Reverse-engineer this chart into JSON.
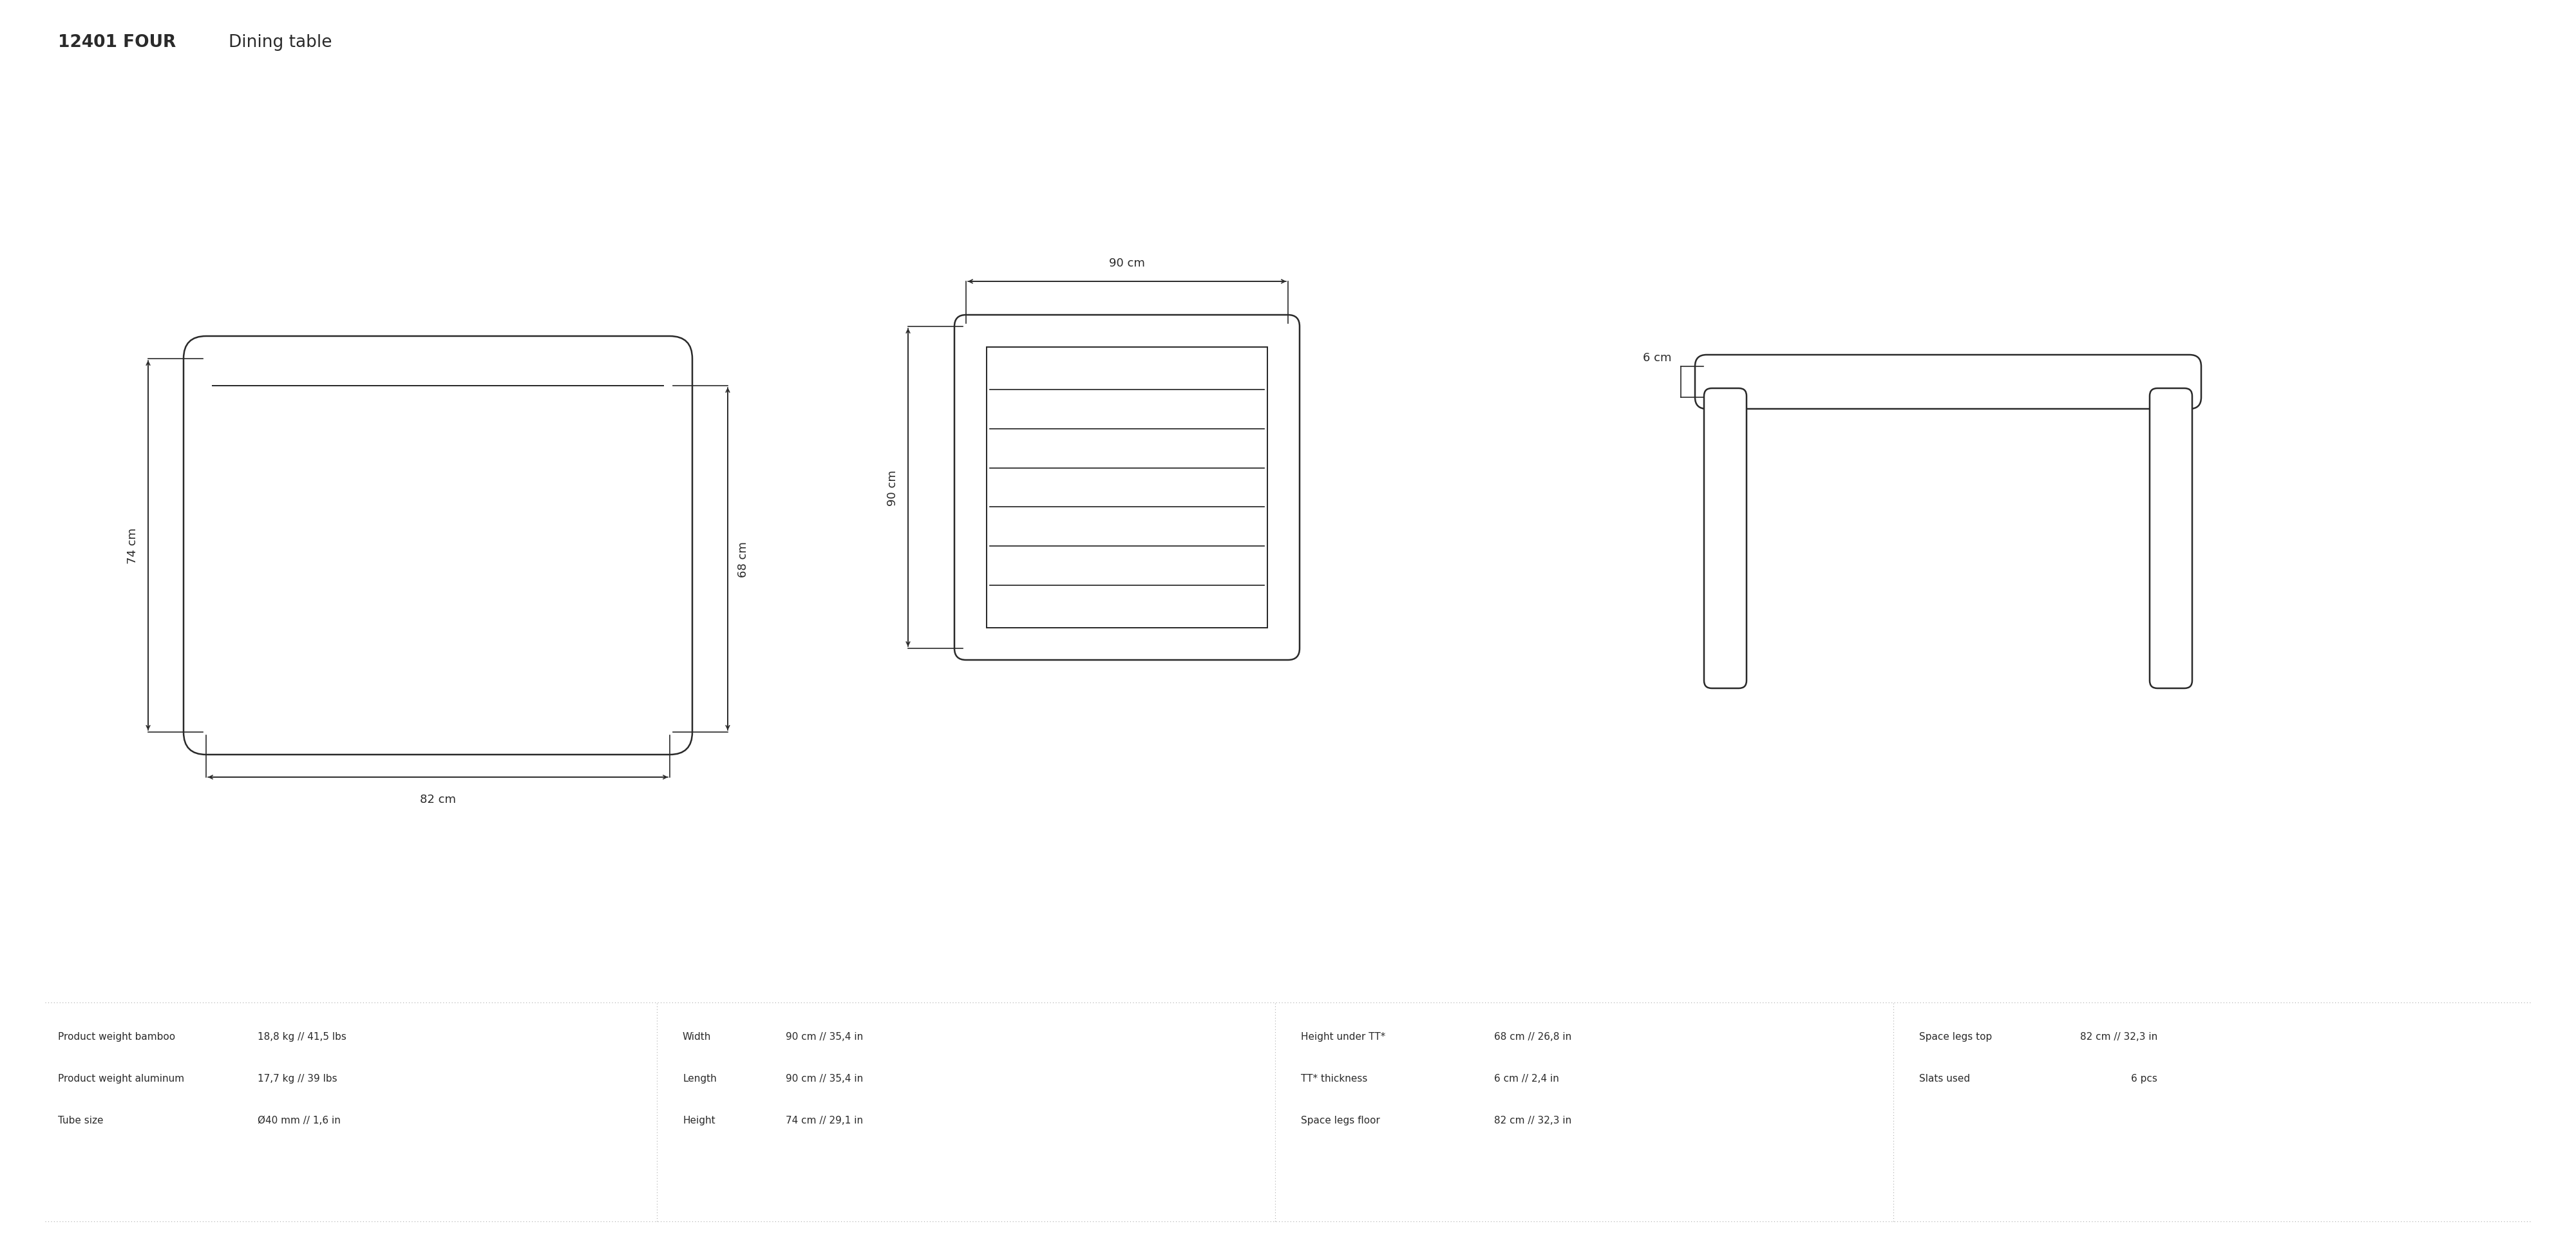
{
  "title_bold": "12401 FOUR",
  "title_normal": "Dining table",
  "bg_color": "#ffffff",
  "line_color": "#2a2a2a",
  "text_color": "#2a2a2a",
  "dim_color": "#2a2a2a",
  "light_line_color": "#aaaaaa",
  "spec_lines": [
    {
      "text": "Product weight bamboo",
      "value": "18,8 kg // 41,5 lbs"
    },
    {
      "text": "Product weight aluminum",
      "value": "17,7 kg // 39 lbs"
    },
    {
      "text": "Tube size",
      "value": "Ø40 mm // 1,6 in"
    }
  ],
  "spec_col2": [
    {
      "text": "Width",
      "value": "90 cm // 35,4 in"
    },
    {
      "text": "Length",
      "value": "90 cm // 35,4 in"
    },
    {
      "text": "Height",
      "value": "74 cm // 29,1 in"
    }
  ],
  "spec_col3": [
    {
      "text": "Height under TT*",
      "value": "68 cm // 26,8 in"
    },
    {
      "text": "TT* thickness",
      "value": "6 cm // 2,4 in"
    },
    {
      "text": "Space legs floor",
      "value": "82 cm // 32,3 in"
    }
  ],
  "spec_col4": [
    {
      "text": "Space legs top",
      "value": "82 cm // 32,3 in"
    },
    {
      "text": "Slats used",
      "value": "6 pcs"
    }
  ]
}
